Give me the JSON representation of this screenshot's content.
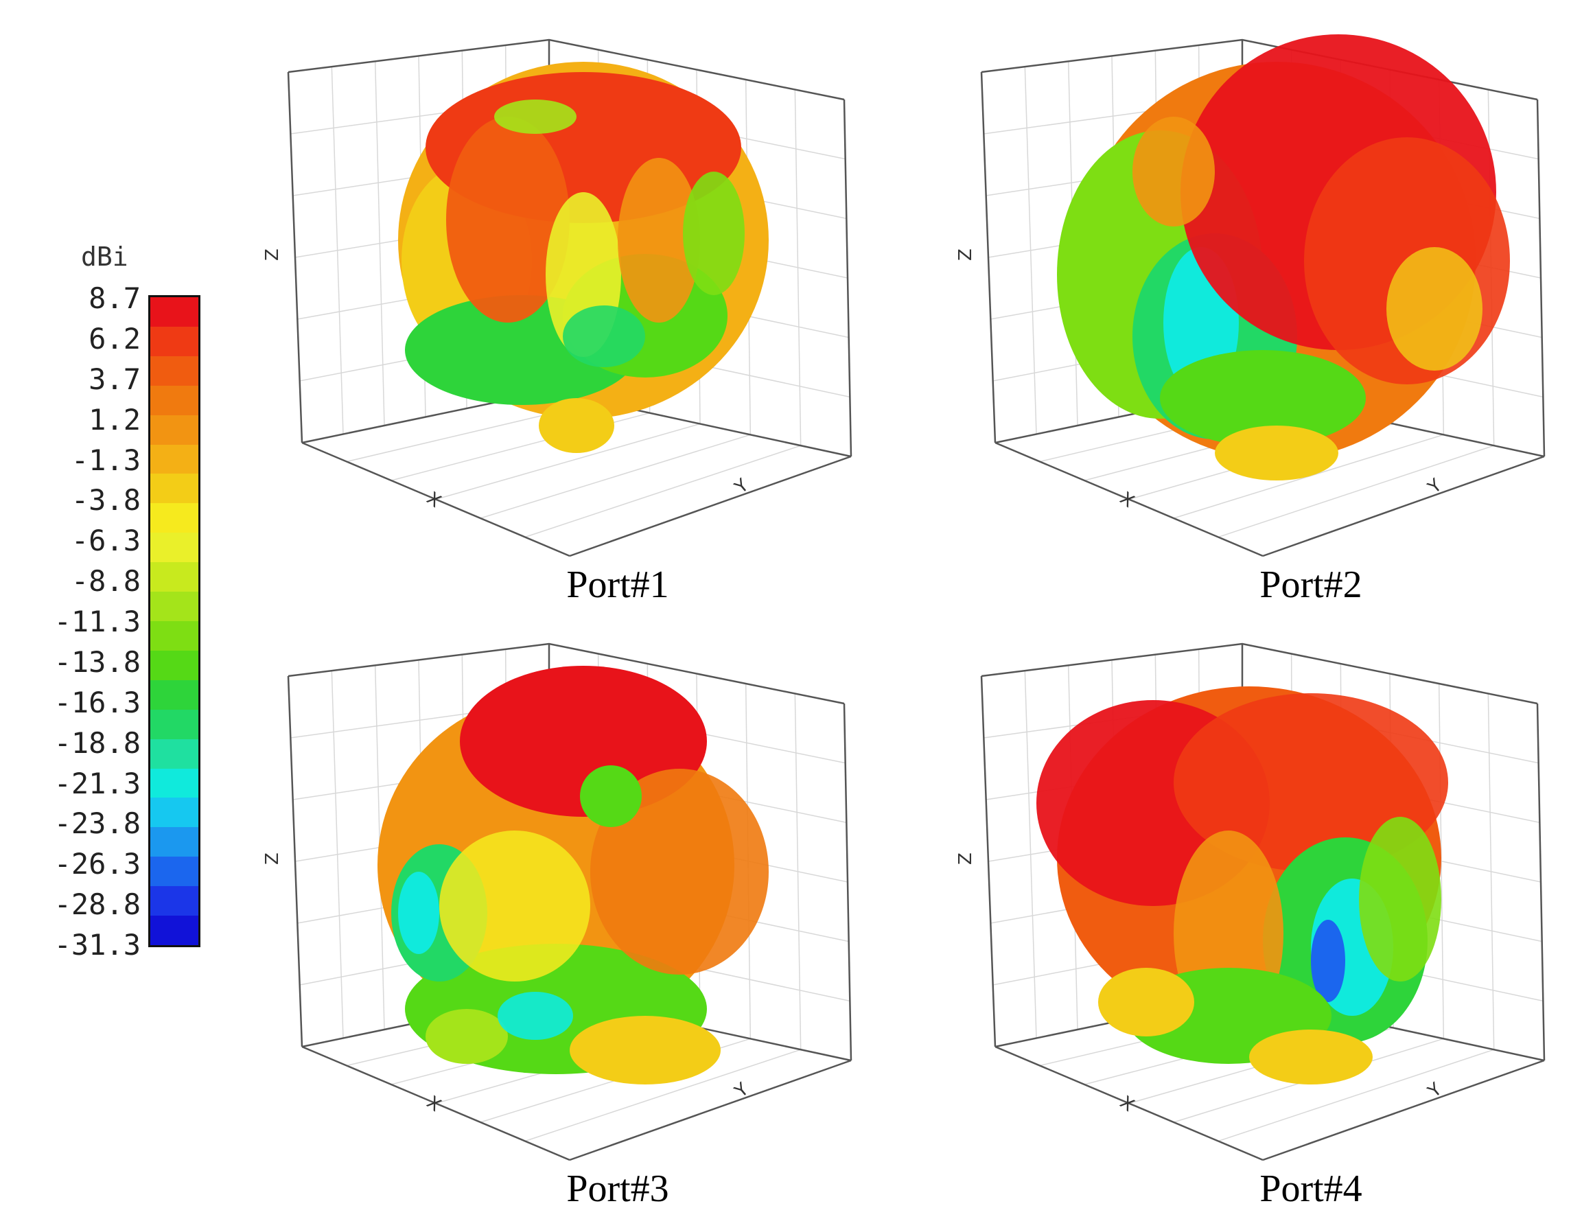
{
  "chart_data": {
    "type": "heatmap",
    "colorbar": {
      "unit": "dBi",
      "ticks": [
        "8.7",
        "6.2",
        "3.7",
        "1.2",
        "-1.3",
        "-3.8",
        "-6.3",
        "-8.8",
        "-11.3",
        "-13.8",
        "-16.3",
        "-18.8",
        "-21.3",
        "-23.8",
        "-26.3",
        "-28.8",
        "-31.3"
      ],
      "max": 8.7,
      "min": -31.3,
      "colors": [
        "#e8131a",
        "#ef3a14",
        "#f05c10",
        "#f07a0f",
        "#f29412",
        "#f4b015",
        "#f3cd17",
        "#f6ea1e",
        "#eaf02a",
        "#c8ea1e",
        "#a4e41a",
        "#7ede13",
        "#55d916",
        "#2ed43a",
        "#22d865",
        "#1fe0a0",
        "#10eadc",
        "#16c8f0",
        "#1b98ef",
        "#1b66ee",
        "#1b36e8",
        "#1112d8"
      ]
    },
    "panels": [
      {
        "label": "Port#1",
        "axes": {
          "x": "X",
          "y": "Y",
          "z": "Z"
        }
      },
      {
        "label": "Port#2",
        "axes": {
          "x": "X",
          "y": "Y",
          "z": "Z"
        }
      },
      {
        "label": "Port#3",
        "axes": {
          "x": "X",
          "y": "Y",
          "z": "Z"
        }
      },
      {
        "label": "Port#4",
        "axes": {
          "x": "X",
          "y": "Y",
          "z": "Z"
        }
      }
    ]
  }
}
